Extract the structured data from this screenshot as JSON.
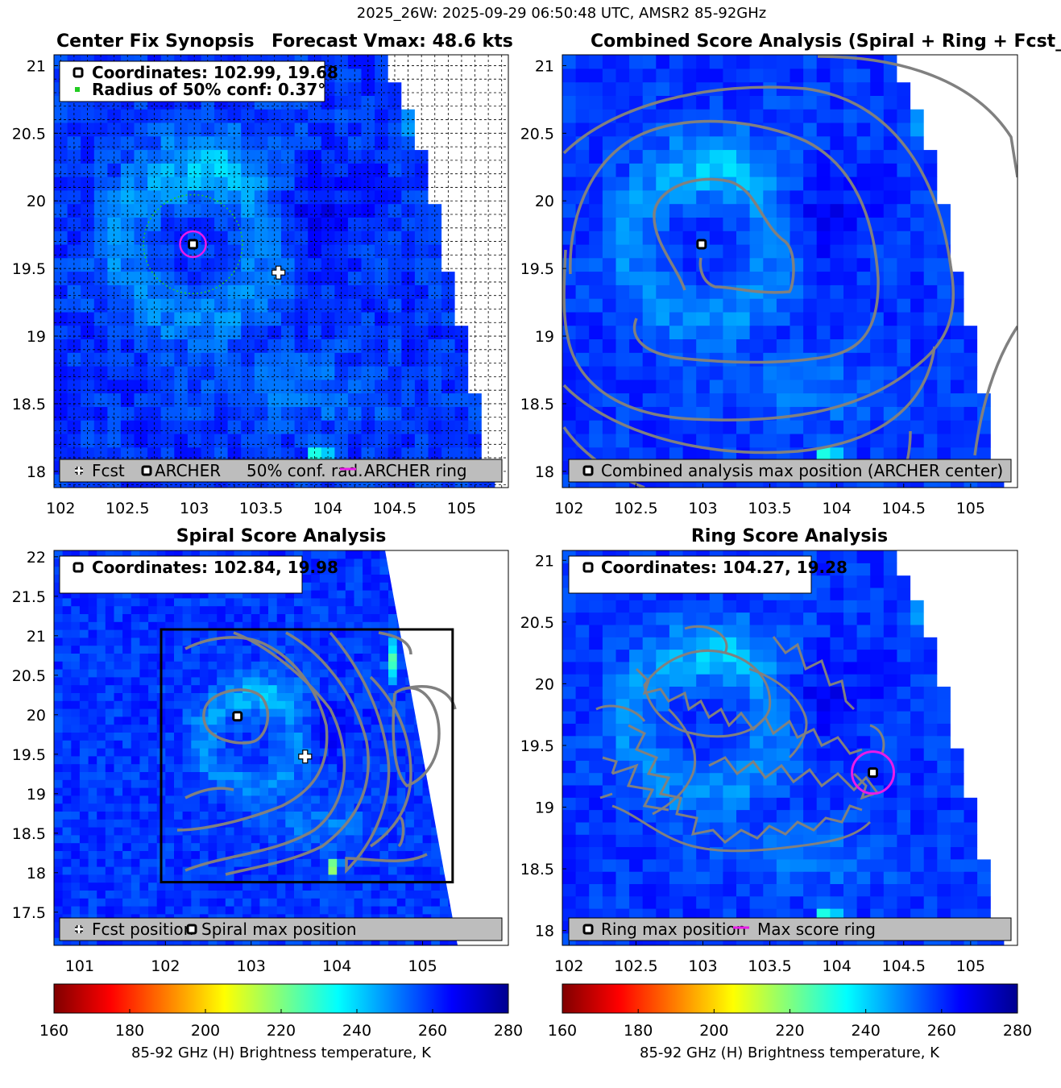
{
  "figure_title": "2025_26W: 2025-09-29 06:50:48 UTC, AMSR2 85-92GHz",
  "chart_data": [
    {
      "type": "heatmap",
      "id": "p1",
      "title_left": "Center Fix Synopsis",
      "title_right": "Forecast Vmax: 48.6 kts",
      "xlim": [
        101.95,
        105.35
      ],
      "ylim": [
        17.88,
        21.08
      ],
      "xticks": [
        "102",
        "102.5",
        "103",
        "103.5",
        "104",
        "104.5",
        "105"
      ],
      "xtick_values": [
        102,
        102.5,
        103,
        103.5,
        104,
        104.5,
        105
      ],
      "yticks": [
        "18",
        "18.5",
        "19",
        "19.5",
        "20",
        "20.5",
        "21"
      ],
      "ytick_values": [
        18,
        18.5,
        19,
        19.5,
        20,
        20.5,
        21
      ],
      "grid": true,
      "info_lines": [
        "Coordinates: 102.99, 19.68",
        "Radius of 50% conf: 0.37°"
      ],
      "legend_items": [
        "Fcst",
        "ARCHER",
        "50% conf. rad.",
        "ARCHER ring"
      ],
      "markers": {
        "archer_center": [
          102.99,
          19.68
        ],
        "fcst": [
          103.63,
          19.47
        ],
        "conf_radius_deg": 0.37
      }
    },
    {
      "type": "heatmap",
      "id": "p2",
      "title": "Combined Score Analysis (Spiral + Ring + Fcst_Pe",
      "xlim": [
        101.95,
        105.35
      ],
      "ylim": [
        17.88,
        21.08
      ],
      "xticks": [
        "102",
        "102.5",
        "103",
        "103.5",
        "104",
        "104.5",
        "105"
      ],
      "xtick_values": [
        102,
        102.5,
        103,
        103.5,
        104,
        104.5,
        105
      ],
      "yticks": [
        "18",
        "18.5",
        "19",
        "19.5",
        "20",
        "20.5",
        "21"
      ],
      "ytick_values": [
        18,
        18.5,
        19,
        19.5,
        20,
        20.5,
        21
      ],
      "grid": false,
      "legend_items": [
        "Combined analysis max position (ARCHER center)"
      ],
      "markers": {
        "max_position": [
          102.99,
          19.68
        ]
      }
    },
    {
      "type": "heatmap",
      "id": "p3",
      "title": "Spiral Score Analysis",
      "xlim": [
        100.7,
        106.0
      ],
      "ylim": [
        17.08,
        22.08
      ],
      "xticks": [
        "101",
        "102",
        "103",
        "104",
        "105"
      ],
      "xtick_values": [
        101,
        102,
        103,
        104,
        105
      ],
      "yticks": [
        "17.5",
        "18",
        "18.5",
        "19",
        "19.5",
        "20",
        "20.5",
        "21",
        "21.5",
        "22"
      ],
      "ytick_values": [
        17.5,
        18,
        18.5,
        19,
        19.5,
        20,
        20.5,
        21,
        21.5,
        22
      ],
      "grid": false,
      "info_lines": [
        "Coordinates: 102.84, 19.98"
      ],
      "legend_items": [
        "Fcst position",
        "Spiral max position"
      ],
      "markers": {
        "spiral_max": [
          102.84,
          19.98
        ],
        "fcst": [
          103.63,
          19.47
        ],
        "box_lon": [
          101.95,
          105.35
        ],
        "box_lat": [
          17.88,
          21.08
        ]
      }
    },
    {
      "type": "heatmap",
      "id": "p4",
      "title": "Ring Score Analysis",
      "xlim": [
        101.95,
        105.35
      ],
      "ylim": [
        17.88,
        21.08
      ],
      "xticks": [
        "102",
        "102.5",
        "103",
        "103.5",
        "104",
        "104.5",
        "105"
      ],
      "xtick_values": [
        102,
        102.5,
        103,
        103.5,
        104,
        104.5,
        105
      ],
      "yticks": [
        "18",
        "18.5",
        "19",
        "19.5",
        "20",
        "20.5",
        "21"
      ],
      "ytick_values": [
        18,
        18.5,
        19,
        19.5,
        20,
        20.5,
        21
      ],
      "grid": false,
      "info_lines": [
        "Coordinates: 104.27, 19.28"
      ],
      "legend_items": [
        "Ring max position",
        "Max score ring"
      ],
      "markers": {
        "ring_max": [
          104.27,
          19.28
        ]
      }
    }
  ],
  "colorbar": {
    "range": [
      160,
      280
    ],
    "ticks": [
      "160",
      "180",
      "200",
      "220",
      "240",
      "260",
      "280"
    ],
    "tick_values": [
      160,
      180,
      200,
      220,
      240,
      260,
      280
    ],
    "label": "85-92 GHz (H) Brightness temperature, K",
    "colormap": "jet_reversed"
  },
  "colors": {
    "contour": "#808080",
    "ring": "#e81ce8",
    "conf_circle": "#22cc22",
    "legend_bg": "#bdbdbd"
  }
}
